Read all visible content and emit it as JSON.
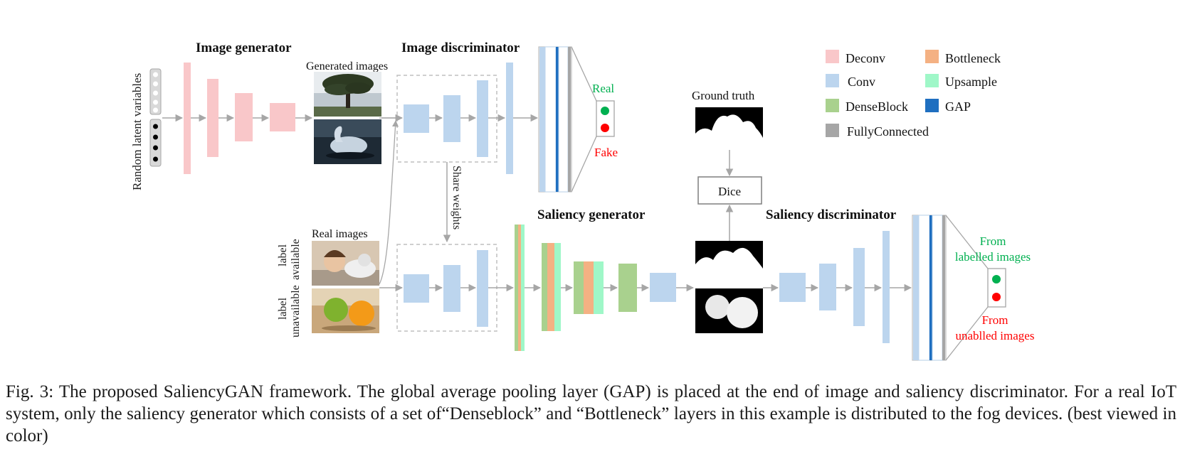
{
  "colors": {
    "deconv": "#f9c7c9",
    "conv": "#bcd5ee",
    "denseblock": "#a9d18e",
    "bottleneck": "#f4b183",
    "upsample": "#9ff7c8",
    "gap": "#1f6fc0",
    "fully_connected": "#a6a6a6",
    "real_text": "#00b050",
    "fake_text": "#ff0000",
    "dashed_box": "#bfbfbf",
    "arrow": "#a6a6a6"
  },
  "titles": {
    "image_generator": "Image generator",
    "image_discriminator": "Image discriminator",
    "saliency_generator": "Saliency generator",
    "saliency_discriminator": "Saliency discriminator"
  },
  "labels": {
    "random_latent": "Random latent  variables",
    "generated_images": "Generated images",
    "real_images": "Real  images",
    "label_available_1": "label",
    "label_available_2": "available",
    "label_unavailable_1": "label",
    "label_unavailable_2": "unavailable",
    "share_weights": "Share weights",
    "ground_truth": "Ground truth",
    "dice": "Dice",
    "real": "Real",
    "fake": "Fake",
    "from_labelled_1": "From",
    "from_labelled_2": "labelled images",
    "from_unlabelled_1": "From",
    "from_unlabelled_2": "unablled images"
  },
  "legend": [
    {
      "name": "Deconv",
      "color": "#f9c7c9"
    },
    {
      "name": "Bottleneck",
      "color": "#f4b183"
    },
    {
      "name": "Conv",
      "color": "#bcd5ee"
    },
    {
      "name": "Upsample",
      "color": "#9ff7c8"
    },
    {
      "name": "DenseBlock",
      "color": "#a9d18e"
    },
    {
      "name": "GAP",
      "color": "#1f6fc0"
    },
    {
      "name": "FullyConnected",
      "color": "#a6a6a6"
    }
  ],
  "images": {
    "tree": "tree photo",
    "swan": "swan photo",
    "child_cat": "child and cat photo",
    "fruits": "apple and orange photo",
    "gt_mask": "ground truth mask",
    "pred_mask_1": "predicted saliency map (child and cat)",
    "pred_mask_2": "predicted saliency map (fruits)"
  },
  "caption": "Fig. 3: The proposed SaliencyGAN framework. The global average pooling layer (GAP) is placed at the end of image and saliency discriminator. For a real IoT system, only the saliency generator which consists of a set of“Denseblock” and “Bottleneck” layers in this example is distributed to the fog devices. (best viewed in color)"
}
